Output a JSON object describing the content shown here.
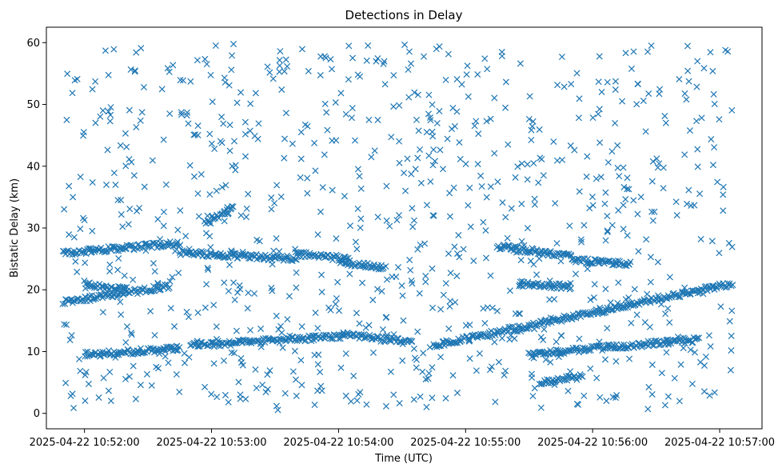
{
  "chart_data": {
    "type": "scatter",
    "title": "Detections in Delay",
    "xlabel": "Time (UTC)",
    "ylabel": "Bistatic Delay (km)",
    "marker": "x",
    "color": "#1f77b4",
    "grid": false,
    "legend": "none",
    "xlim": [
      "2025-04-22 10:51:42",
      "2025-04-22 10:57:20"
    ],
    "ylim": [
      -2.5,
      62.5
    ],
    "xticks": [
      "2025-04-22 10:52:00",
      "2025-04-22 10:53:00",
      "2025-04-22 10:54:00",
      "2025-04-22 10:55:00",
      "2025-04-22 10:56:00",
      "2025-04-22 10:57:00"
    ],
    "yticks": [
      0,
      10,
      20,
      30,
      40,
      50,
      60
    ],
    "tracks": [
      {
        "x": [
          "2025-04-22 10:51:50",
          "2025-04-22 10:52:45"
        ],
        "y": [
          26.0,
          27.5
        ]
      },
      {
        "x": [
          "2025-04-22 10:52:45",
          "2025-04-22 10:53:40"
        ],
        "y": [
          26.0,
          25.0
        ]
      },
      {
        "x": [
          "2025-04-22 10:53:40",
          "2025-04-22 10:54:05"
        ],
        "y": [
          25.8,
          25.0
        ]
      },
      {
        "x": [
          "2025-04-22 10:54:00",
          "2025-04-22 10:54:22"
        ],
        "y": [
          24.5,
          23.5
        ]
      },
      {
        "x": [
          "2025-04-22 10:55:15",
          "2025-04-22 10:55:50"
        ],
        "y": [
          27.0,
          25.5
        ]
      },
      {
        "x": [
          "2025-04-22 10:55:50",
          "2025-04-22 10:56:18"
        ],
        "y": [
          24.8,
          24.2
        ]
      },
      {
        "x": [
          "2025-04-22 10:51:50",
          "2025-04-22 10:52:40"
        ],
        "y": [
          18.0,
          20.5
        ]
      },
      {
        "x": [
          "2025-04-22 10:52:00",
          "2025-04-22 10:52:20"
        ],
        "y": [
          21.0,
          20.0
        ]
      },
      {
        "x": [
          "2025-04-22 10:55:25",
          "2025-04-22 10:55:50"
        ],
        "y": [
          21.0,
          20.5
        ]
      },
      {
        "x": [
          "2025-04-22 10:52:50",
          "2025-04-22 10:54:02"
        ],
        "y": [
          11.0,
          12.5
        ]
      },
      {
        "x": [
          "2025-04-22 10:54:02",
          "2025-04-22 10:54:35"
        ],
        "y": [
          12.8,
          11.5
        ]
      },
      {
        "x": [
          "2025-04-22 10:54:45",
          "2025-04-22 10:57:06"
        ],
        "y": [
          11.0,
          21.0
        ]
      },
      {
        "x": [
          "2025-04-22 10:52:00",
          "2025-04-22 10:52:45"
        ],
        "y": [
          9.5,
          10.5
        ]
      },
      {
        "x": [
          "2025-04-22 10:55:30",
          "2025-04-22 10:56:50"
        ],
        "y": [
          9.5,
          12.0
        ]
      },
      {
        "x": [
          "2025-04-22 10:55:35",
          "2025-04-22 10:55:55"
        ],
        "y": [
          5.0,
          6.0
        ]
      },
      {
        "x": [
          "2025-04-22 10:52:57",
          "2025-04-22 10:53:10"
        ],
        "y": [
          31.0,
          33.0
        ]
      }
    ],
    "clutter_points": 900,
    "clutter_x_range": [
      "2025-04-22 10:51:50",
      "2025-04-22 10:57:06"
    ],
    "clutter_y_range": [
      0.5,
      60
    ]
  }
}
